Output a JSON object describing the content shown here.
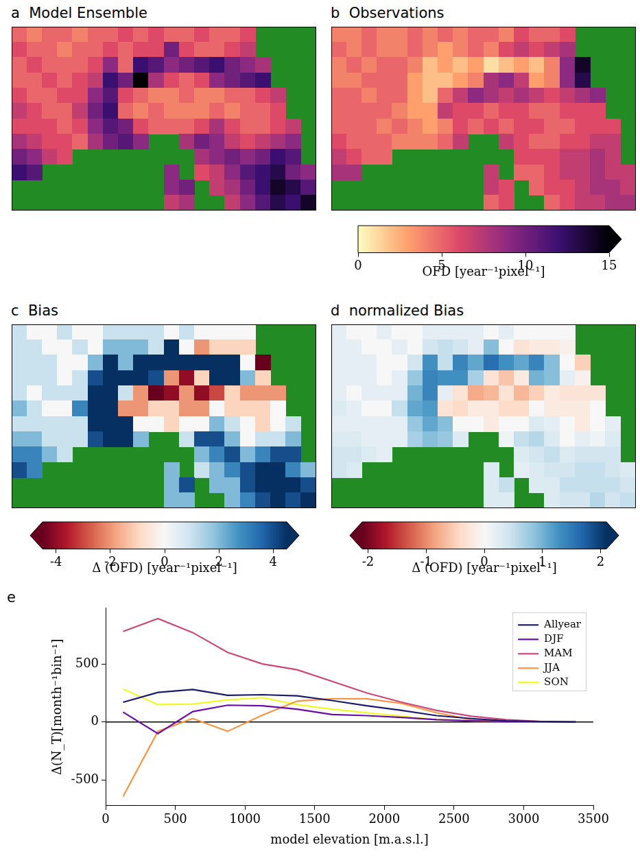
{
  "chart_data": [
    {
      "type": "heatmap",
      "title": "a  Model Ensemble",
      "tick_labels": false,
      "cells": [
        [
          5,
          4,
          5,
          5,
          4,
          5,
          5,
          6,
          5,
          6,
          5,
          5,
          6,
          5,
          5,
          6,
          null,
          null,
          null,
          null
        ],
        [
          6,
          5,
          5,
          4,
          5,
          5,
          6,
          5,
          6,
          6,
          10,
          6,
          5,
          5,
          6,
          7,
          null,
          null,
          null,
          null
        ],
        [
          5,
          6,
          5,
          5,
          5,
          6,
          9,
          5,
          12,
          11,
          9,
          10,
          11,
          12,
          10,
          9,
          8,
          null,
          null,
          null
        ],
        [
          5,
          5,
          6,
          5,
          6,
          7,
          12,
          10,
          15,
          8,
          6,
          5,
          6,
          9,
          10,
          11,
          12,
          null,
          null,
          null
        ],
        [
          6,
          5,
          5,
          6,
          6,
          9,
          11,
          6,
          5,
          4,
          4,
          5,
          4,
          4,
          5,
          5,
          6,
          7,
          null,
          null
        ],
        [
          7,
          6,
          5,
          5,
          7,
          10,
          12,
          5,
          4,
          5,
          4,
          4,
          4,
          5,
          4,
          5,
          5,
          6,
          null,
          null
        ],
        [
          6,
          6,
          6,
          5,
          6,
          9,
          11,
          10,
          6,
          5,
          5,
          5,
          6,
          8,
          6,
          5,
          5,
          6,
          7,
          null
        ],
        [
          8,
          7,
          6,
          6,
          5,
          8,
          10,
          11,
          9,
          null,
          null,
          8,
          10,
          9,
          7,
          6,
          7,
          8,
          9,
          null
        ],
        [
          10,
          9,
          7,
          6,
          null,
          null,
          null,
          null,
          null,
          null,
          null,
          null,
          8,
          9,
          10,
          9,
          10,
          12,
          11,
          null
        ],
        [
          12,
          11,
          null,
          null,
          null,
          null,
          null,
          null,
          null,
          null,
          9,
          null,
          6,
          7,
          9,
          11,
          12,
          13,
          10,
          9
        ],
        [
          null,
          null,
          null,
          null,
          null,
          null,
          null,
          null,
          null,
          null,
          9,
          10,
          null,
          7,
          8,
          10,
          12,
          14,
          13,
          11
        ],
        [
          null,
          null,
          null,
          null,
          null,
          null,
          null,
          null,
          null,
          null,
          7,
          8,
          null,
          null,
          7,
          9,
          11,
          13,
          12,
          14
        ]
      ]
    },
    {
      "type": "heatmap",
      "title": "b  Observations",
      "tick_labels": false,
      "cells": [
        [
          4,
          4,
          5,
          4,
          4,
          5,
          4,
          5,
          4,
          5,
          5,
          4,
          6,
          5,
          5,
          6,
          null,
          null,
          null,
          null
        ],
        [
          5,
          4,
          5,
          4,
          4,
          5,
          4,
          3,
          4,
          5,
          4,
          6,
          7,
          6,
          7,
          8,
          null,
          null,
          null,
          null
        ],
        [
          4,
          5,
          4,
          5,
          5,
          4,
          2,
          3,
          2,
          3,
          1,
          2,
          3,
          2,
          4,
          9,
          14,
          null,
          null,
          null
        ],
        [
          4,
          4,
          5,
          5,
          5,
          3,
          2,
          2,
          3,
          4,
          8,
          9,
          7,
          3,
          4,
          9,
          13,
          null,
          null,
          null
        ],
        [
          5,
          5,
          4,
          5,
          5,
          3,
          2,
          5,
          7,
          9,
          8,
          7,
          8,
          7,
          6,
          7,
          8,
          9,
          null,
          null
        ],
        [
          5,
          5,
          5,
          5,
          4,
          3,
          3,
          7,
          6,
          6,
          5,
          6,
          6,
          5,
          5,
          6,
          6,
          6,
          null,
          null
        ],
        [
          5,
          5,
          5,
          4,
          5,
          4,
          3,
          4,
          6,
          5,
          6,
          5,
          6,
          6,
          5,
          5,
          6,
          6,
          6,
          null
        ],
        [
          6,
          5,
          5,
          5,
          4,
          4,
          4,
          5,
          7,
          null,
          null,
          7,
          6,
          5,
          5,
          6,
          6,
          7,
          7,
          null
        ],
        [
          7,
          6,
          5,
          5,
          null,
          null,
          null,
          null,
          null,
          null,
          null,
          null,
          6,
          6,
          6,
          7,
          7,
          8,
          7,
          null
        ],
        [
          8,
          8,
          null,
          null,
          null,
          null,
          null,
          null,
          null,
          null,
          7,
          null,
          5,
          5,
          6,
          7,
          7,
          8,
          7,
          7
        ],
        [
          null,
          null,
          null,
          null,
          null,
          null,
          null,
          null,
          null,
          null,
          7,
          6,
          null,
          5,
          6,
          6,
          7,
          8,
          8,
          7
        ],
        [
          null,
          null,
          null,
          null,
          null,
          null,
          null,
          null,
          null,
          null,
          5,
          6,
          null,
          null,
          5,
          6,
          7,
          7,
          8,
          8
        ]
      ],
      "colorbar": {
        "label": "OFD [year⁻¹pixel⁻¹]",
        "range": [
          0,
          15
        ],
        "ticks": [
          0,
          5,
          10,
          15
        ]
      }
    },
    {
      "type": "heatmap",
      "title": "c  Bias",
      "tick_labels": false,
      "cells": [
        [
          1,
          0,
          0,
          1,
          0,
          0,
          1,
          1,
          1,
          1,
          0,
          1,
          0,
          0,
          0,
          0,
          null,
          null,
          null,
          null
        ],
        [
          1,
          1,
          0,
          0,
          1,
          0,
          2,
          2,
          2,
          1,
          6,
          0,
          -2,
          -1,
          -1,
          -1,
          null,
          null,
          null,
          null
        ],
        [
          1,
          1,
          1,
          0,
          0,
          2,
          7,
          2,
          10,
          8,
          8,
          8,
          8,
          10,
          6,
          0,
          -6,
          null,
          null,
          null
        ],
        [
          1,
          1,
          1,
          0,
          1,
          4,
          10,
          8,
          12,
          4,
          -2,
          -4,
          -1,
          6,
          6,
          2,
          -1,
          null,
          null,
          null
        ],
        [
          1,
          0,
          1,
          1,
          1,
          6,
          9,
          1,
          -2,
          -5,
          -4,
          -2,
          -4,
          -3,
          -1,
          -2,
          -2,
          -2,
          null,
          null
        ],
        [
          2,
          1,
          0,
          0,
          3,
          7,
          9,
          -2,
          -2,
          -1,
          -1,
          -2,
          -2,
          0,
          -1,
          -1,
          -1,
          0,
          null,
          null
        ],
        [
          1,
          1,
          1,
          1,
          1,
          5,
          8,
          6,
          0,
          0,
          -1,
          0,
          0,
          2,
          1,
          0,
          -1,
          0,
          1,
          null
        ],
        [
          2,
          2,
          1,
          1,
          1,
          4,
          6,
          6,
          2,
          null,
          null,
          1,
          4,
          4,
          2,
          0,
          1,
          1,
          2,
          null
        ],
        [
          3,
          3,
          2,
          1,
          null,
          null,
          null,
          null,
          null,
          null,
          null,
          null,
          2,
          3,
          4,
          2,
          3,
          4,
          4,
          null
        ],
        [
          4,
          3,
          null,
          null,
          null,
          null,
          null,
          null,
          null,
          null,
          2,
          null,
          1,
          2,
          3,
          4,
          5,
          5,
          3,
          2
        ],
        [
          null,
          null,
          null,
          null,
          null,
          null,
          null,
          null,
          null,
          null,
          2,
          4,
          null,
          2,
          2,
          4,
          5,
          6,
          5,
          4
        ],
        [
          null,
          null,
          null,
          null,
          null,
          null,
          null,
          null,
          null,
          null,
          2,
          2,
          null,
          null,
          2,
          3,
          4,
          6,
          4,
          6
        ]
      ],
      "colorbar": {
        "label": "Δ (OFD) [year⁻¹pixel⁻¹]",
        "range": [
          -4.5,
          4.5
        ],
        "ticks": [
          -4,
          -2,
          0,
          2,
          4
        ]
      }
    },
    {
      "type": "heatmap",
      "title": "d  normalized Bias",
      "tick_labels": false,
      "cells": [
        [
          0.2,
          0,
          0,
          0.2,
          0,
          0,
          0.2,
          0.2,
          0.2,
          0.2,
          0,
          0.2,
          0,
          0,
          0,
          0,
          null,
          null,
          null,
          null
        ],
        [
          0.2,
          0.2,
          0,
          0,
          0.2,
          0,
          0.4,
          0.5,
          0.4,
          0.2,
          0.9,
          0,
          -0.3,
          -0.2,
          -0.2,
          -0.1,
          null,
          null,
          null,
          null
        ],
        [
          0.2,
          0.2,
          0.2,
          0,
          0,
          0.4,
          1.3,
          0.5,
          1.4,
          1.1,
          1.6,
          1.3,
          1.1,
          1.4,
          0.9,
          0,
          -0.5,
          null,
          null,
          null
        ],
        [
          0.2,
          0.2,
          0.2,
          0,
          0.2,
          0.8,
          1.4,
          1.3,
          1.3,
          0.7,
          -0.3,
          -0.6,
          -0.2,
          1.0,
          0.9,
          0.2,
          -0.1,
          null,
          null,
          null
        ],
        [
          0.2,
          0,
          0.2,
          0.2,
          0.2,
          1.0,
          1.4,
          0.2,
          -0.3,
          -0.8,
          -0.7,
          -0.3,
          -0.7,
          -0.5,
          -0.2,
          -0.3,
          -0.3,
          -0.3,
          null,
          null
        ],
        [
          0.3,
          0.2,
          0,
          0,
          0.5,
          1.1,
          1.2,
          -0.3,
          -0.4,
          -0.2,
          -0.2,
          -0.4,
          -0.4,
          0,
          -0.2,
          -0.2,
          -0.2,
          0,
          null,
          null
        ],
        [
          0.2,
          0.2,
          0.2,
          0.2,
          0.2,
          0.8,
          1.1,
          0.9,
          0,
          0,
          -0.2,
          0,
          0,
          0.3,
          0.2,
          0,
          -0.2,
          0,
          0.2,
          null
        ],
        [
          0.3,
          0.3,
          0.2,
          0.2,
          0.2,
          0.7,
          0.9,
          0.8,
          0.3,
          null,
          null,
          0.1,
          0.5,
          0.6,
          0.3,
          0,
          0.2,
          0.1,
          0.3,
          null
        ],
        [
          0.4,
          0.4,
          0.3,
          0.2,
          null,
          null,
          null,
          null,
          null,
          null,
          null,
          null,
          0.3,
          0.4,
          0.5,
          0.3,
          0.4,
          0.4,
          0.4,
          null
        ],
        [
          0.4,
          0.3,
          null,
          null,
          null,
          null,
          null,
          null,
          null,
          null,
          0.3,
          null,
          0.2,
          0.3,
          0.4,
          0.4,
          0.5,
          0.5,
          0.4,
          0.3
        ],
        [
          null,
          null,
          null,
          null,
          null,
          null,
          null,
          null,
          null,
          null,
          0.3,
          0.5,
          null,
          0.3,
          0.3,
          0.5,
          0.5,
          0.5,
          0.5,
          0.4
        ],
        [
          null,
          null,
          null,
          null,
          null,
          null,
          null,
          null,
          null,
          null,
          0.3,
          0.3,
          null,
          null,
          0.3,
          0.4,
          0.4,
          0.6,
          0.4,
          0.5
        ]
      ],
      "colorbar": {
        "label": "Δ (OFD) [year⁻¹pixel⁻¹]",
        "range": [
          -2.1,
          2.1
        ],
        "ticks": [
          -2,
          -1,
          0,
          1,
          2
        ]
      }
    },
    {
      "type": "line",
      "title": "e",
      "x_label": "model elevation [m.a.s.l.]",
      "y_label": "Δ(N_T)[month⁻¹bin⁻¹]",
      "x": [
        125,
        375,
        625,
        875,
        1125,
        1375,
        1625,
        1875,
        2125,
        2375,
        2625,
        2875,
        3125,
        3375
      ],
      "xlim": [
        0,
        3500
      ],
      "xticks": [
        0,
        500,
        1000,
        1500,
        2000,
        2500,
        3000,
        3500
      ],
      "ylim": [
        -720,
        980
      ],
      "yticks": [
        -500,
        0,
        500
      ],
      "hline": 0,
      "grid": false,
      "legend": "upper right",
      "series": [
        {
          "name": "Allyear",
          "color": "#1a1a6e",
          "values": [
            170,
            255,
            280,
            230,
            235,
            225,
            185,
            140,
            100,
            55,
            30,
            10,
            5,
            2
          ]
        },
        {
          "name": "DJF",
          "color": "#6a0ca8",
          "values": [
            85,
            -100,
            90,
            145,
            140,
            110,
            65,
            55,
            40,
            20,
            10,
            5,
            2,
            0
          ]
        },
        {
          "name": "MAM",
          "color": "#cc4778",
          "values": [
            780,
            890,
            770,
            600,
            500,
            450,
            350,
            250,
            170,
            100,
            50,
            20,
            5,
            0
          ]
        },
        {
          "name": "JJA",
          "color": "#f89540",
          "values": [
            -640,
            -80,
            30,
            -80,
            60,
            180,
            200,
            200,
            160,
            80,
            20,
            5,
            2,
            0
          ]
        },
        {
          "name": "SON",
          "color": "#f0f921",
          "values": [
            285,
            150,
            155,
            190,
            210,
            150,
            110,
            80,
            50,
            20,
            10,
            5,
            2,
            0
          ]
        }
      ]
    }
  ]
}
